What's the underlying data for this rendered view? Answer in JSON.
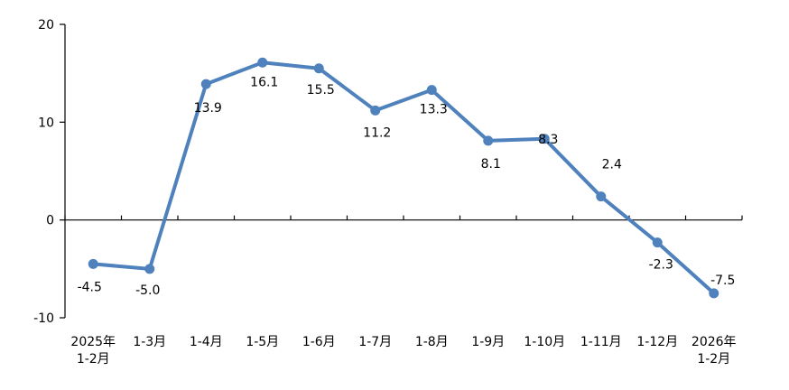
{
  "chart_data": {
    "type": "line",
    "categories": [
      [
        "2025年",
        "1-2月"
      ],
      [
        "1-3月"
      ],
      [
        "1-4月"
      ],
      [
        "1-5月"
      ],
      [
        "1-6月"
      ],
      [
        "1-7月"
      ],
      [
        "1-8月"
      ],
      [
        "1-9月"
      ],
      [
        "1-10月"
      ],
      [
        "1-11月"
      ],
      [
        "1-12月"
      ],
      [
        "2026年",
        "1-2月"
      ]
    ],
    "series": [
      {
        "values": [
          -4.5,
          -5.0,
          13.9,
          16.1,
          15.5,
          11.2,
          13.3,
          8.1,
          8.3,
          2.4,
          -2.3,
          -7.5
        ],
        "labels": [
          "-4.5",
          "-5.0",
          "13.9",
          "16.1",
          "15.5",
          "11.2",
          "13.3",
          "8.1",
          "8.3",
          "2.4",
          "-2.3",
          "-7.5"
        ],
        "color": "#4f81bd"
      }
    ],
    "ylim": [
      -10,
      20
    ],
    "yticks": [
      -10,
      0,
      10,
      20
    ],
    "ytick_labels": [
      "-10",
      "0",
      "10",
      "20"
    ],
    "grid": false,
    "legend": "none",
    "title": "",
    "xlabel": "",
    "ylabel": ""
  }
}
